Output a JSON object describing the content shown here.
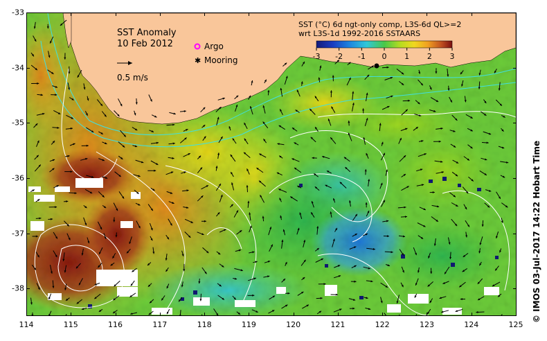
{
  "title": {
    "line1": "SST Anomaly",
    "line2": "10 Feb 2012"
  },
  "legend": {
    "argo_label": "Argo",
    "mooring_label": "Mooring",
    "arrow_scale_label": "0.5 m/s",
    "argo_color": "#ff00ff",
    "mooring_color": "#000000"
  },
  "colorbar": {
    "title_line1": "SST (°C) 6d ngt-only comp, L3S-6d QL>=2",
    "title_line2": "wrt L3S-1d 1992-2016 SSTAARS",
    "ticks": [
      "-3",
      "-2",
      "-1",
      "0",
      "1",
      "2",
      "3"
    ],
    "min": -3,
    "max": 3
  },
  "axes": {
    "x_ticks": [
      "114",
      "115",
      "116",
      "117",
      "118",
      "119",
      "120",
      "121",
      "122",
      "123",
      "124",
      "125"
    ],
    "y_ticks": [
      "-33",
      "-34",
      "-35",
      "-36",
      "-37",
      "-38"
    ],
    "lon_range": [
      114,
      125
    ],
    "lat_range": [
      -38.5,
      -33
    ]
  },
  "credit": "© IMOS 03-Jul-2017 14:22 Hobart Time",
  "colors": {
    "land": "#f9c69a",
    "missing": "#ffffff",
    "contour": "#ffffff",
    "shelf_contour": "#40e0e0"
  }
}
